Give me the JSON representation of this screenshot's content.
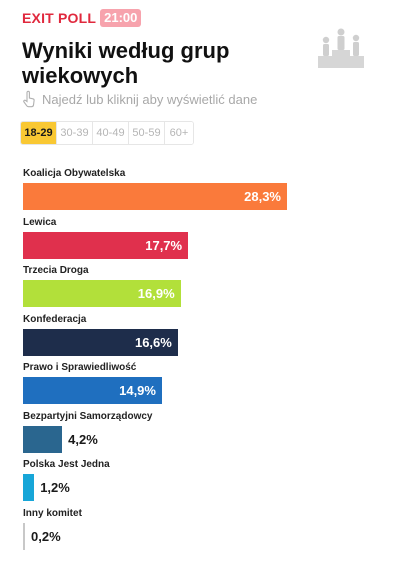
{
  "header": {
    "exit_poll_label": "EXIT POLL",
    "time": "21:00",
    "title": "Wyniki według grup wiekowych",
    "hint": "Najedź lub kliknij aby wyświetlić dane"
  },
  "icons": {
    "people": "people-podium-icon",
    "hint": "hand-pointer-icon"
  },
  "age_tabs": [
    {
      "label": "18-29",
      "active": true
    },
    {
      "label": "30-39",
      "active": false
    },
    {
      "label": "40-49",
      "active": false
    },
    {
      "label": "50-59",
      "active": false
    },
    {
      "label": "60+",
      "active": false
    }
  ],
  "colors": {
    "accent_red": "#e0283d",
    "time_badge": "#f7a3ad",
    "active_tab": "#f9c833"
  },
  "chart_data": {
    "type": "bar",
    "orientation": "horizontal",
    "categories": [
      "Koalicja Obywatelska",
      "Lewica",
      "Trzecia Droga",
      "Konfederacja",
      "Prawo i Sprawiedliwość",
      "Bezpartyjni Samorządowcy",
      "Polska Jest Jedna",
      "Inny komitet"
    ],
    "values": [
      28.3,
      17.7,
      16.9,
      16.6,
      14.9,
      4.2,
      1.2,
      0.2
    ],
    "value_labels": [
      "28,3%",
      "17,7%",
      "16,9%",
      "16,6%",
      "14,9%",
      "4,2%",
      "1,2%",
      "0,2%"
    ],
    "colors": [
      "#fa7a3b",
      "#e0304d",
      "#b2e03a",
      "#1e2d4b",
      "#1f6fbf",
      "#2a668f",
      "#17a6d8",
      "#c8c8c8"
    ],
    "xlim": [
      0,
      28.3
    ]
  }
}
